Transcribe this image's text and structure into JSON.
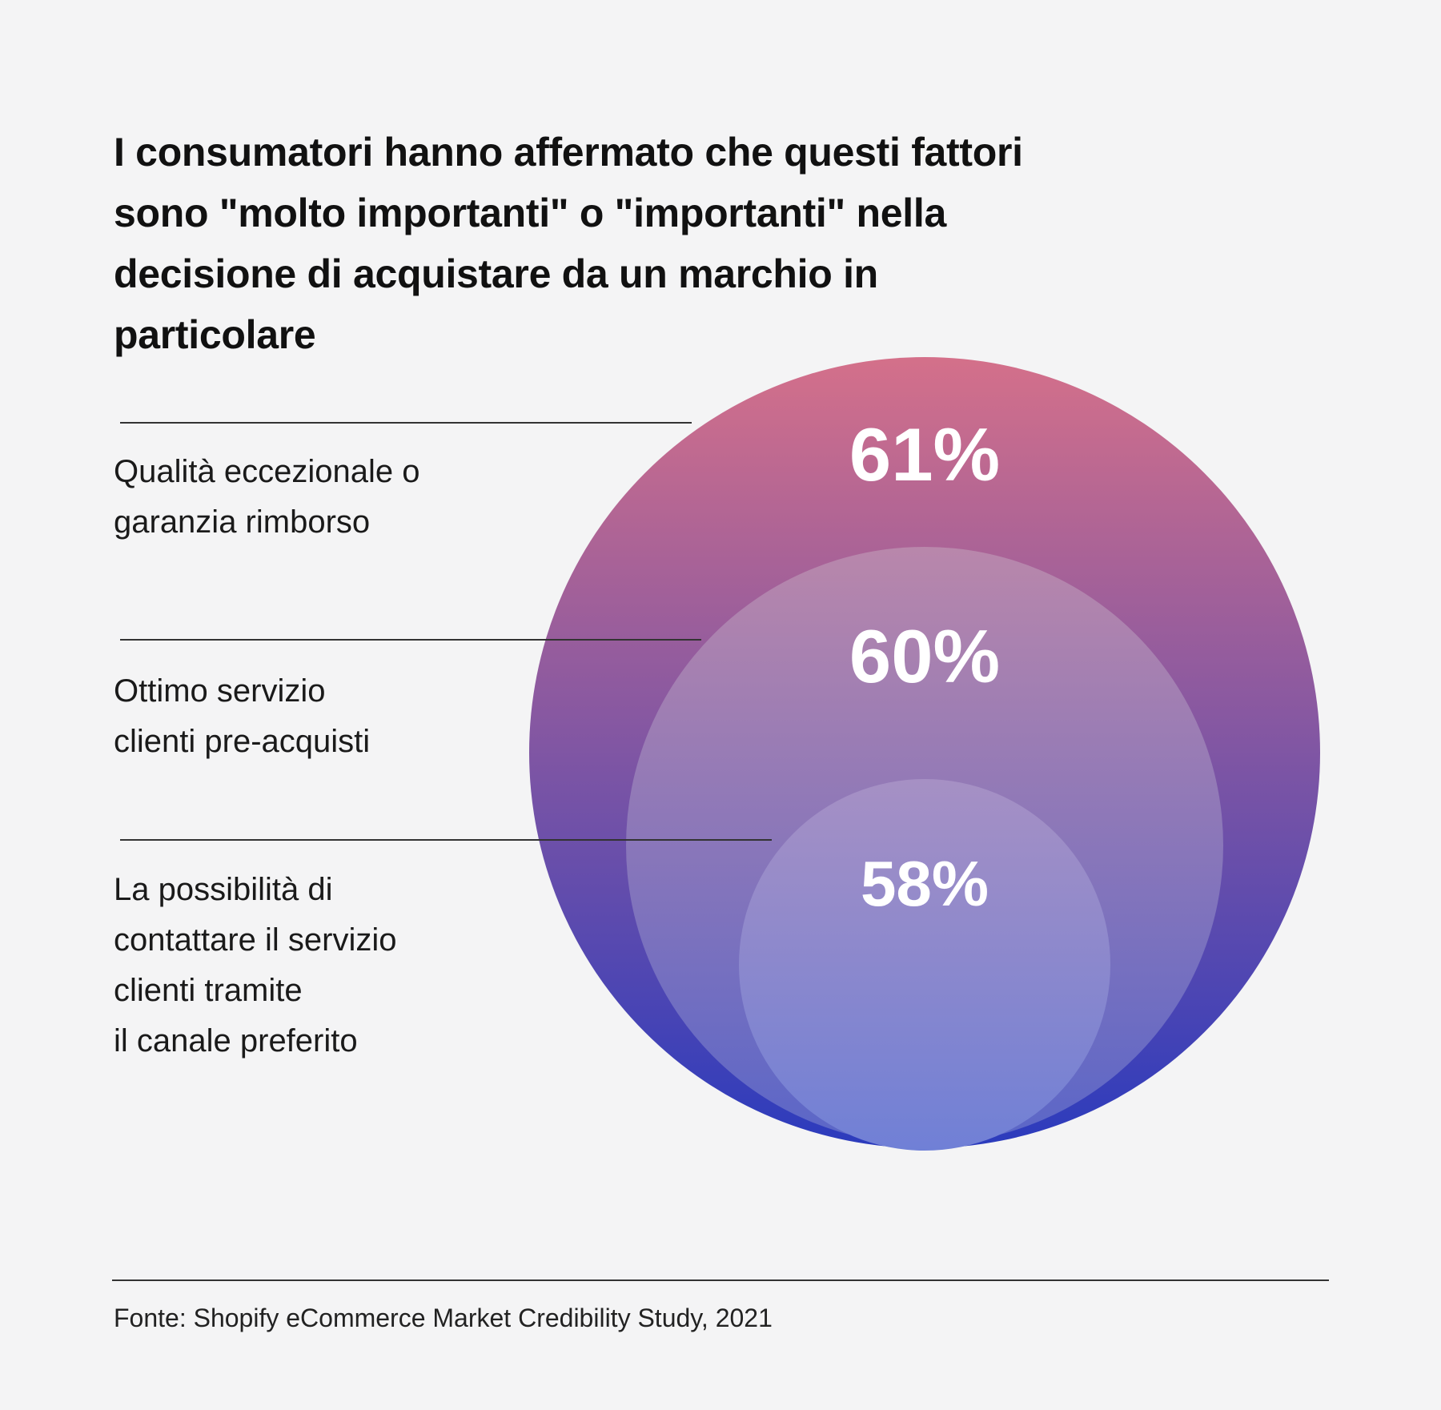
{
  "title": "I consumatori hanno affermato che questi fattori sono \"molto importanti\" o \"importanti\" nella decisione di acquistare da un marchio in particolare",
  "source": "Fonte: Shopify eCommerce Market Credibility Study, 2021",
  "chart_data": {
    "type": "nested-circles",
    "title": "I consumatori hanno affermato che questi fattori sono \"molto importanti\" o \"importanti\" nella decisione di acquistare da un marchio in particolare",
    "categories": [
      "Qualità eccezionale o garanzia rimborso",
      "Ottimo servizio clienti pre-acquisti",
      "La possibilità di contattare il servizio clienti tramite il canale preferito"
    ],
    "category_lines": [
      "Qualità eccezionale o\ngaranzia rimborso",
      "Ottimo servizio\nclienti pre-acquisti",
      "La possibilità di\ncontattare il servizio\nclienti tramite\nil canale preferito"
    ],
    "values": [
      61,
      60,
      58
    ],
    "value_labels": [
      "61%",
      "60%",
      "58%"
    ],
    "unit": "%",
    "colors": {
      "outer": [
        "#d4708a",
        "#2b3bbd"
      ],
      "middle": [
        "#b987ab",
        "#5a66c8"
      ],
      "inner": [
        "#a690c4",
        "#7080d6"
      ]
    }
  }
}
